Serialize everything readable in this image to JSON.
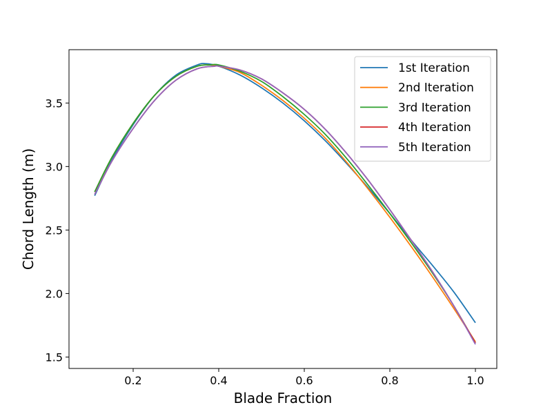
{
  "chart_data": {
    "type": "line",
    "title": "",
    "xlabel": "Blade Fraction",
    "ylabel": "Chord Length (m)",
    "xlim": [
      0.05,
      1.05
    ],
    "ylim": [
      1.41,
      3.92
    ],
    "xticks": [
      0.2,
      0.4,
      0.6,
      0.8,
      1.0
    ],
    "xtick_labels": [
      "0.2",
      "0.4",
      "0.6",
      "0.8",
      "1.0"
    ],
    "yticks": [
      1.5,
      2.0,
      2.5,
      3.0,
      3.5
    ],
    "ytick_labels": [
      "1.5",
      "2.0",
      "2.5",
      "3.0",
      "3.5"
    ],
    "grid": false,
    "legend_position": "top-right",
    "series": [
      {
        "name": "1st Iteration",
        "color": "#1f77b4",
        "x": [
          0.11,
          0.15,
          0.2,
          0.25,
          0.3,
          0.35,
          0.37,
          0.4,
          0.45,
          0.5,
          0.55,
          0.6,
          0.65,
          0.7,
          0.75,
          0.8,
          0.85,
          0.9,
          0.95,
          1.0
        ],
        "y": [
          2.77,
          3.05,
          3.33,
          3.56,
          3.72,
          3.8,
          3.81,
          3.79,
          3.72,
          3.62,
          3.5,
          3.36,
          3.2,
          3.02,
          2.83,
          2.63,
          2.42,
          2.22,
          2.01,
          1.77
        ]
      },
      {
        "name": "2nd Iteration",
        "color": "#ff7f0e",
        "x": [
          0.11,
          0.15,
          0.2,
          0.25,
          0.3,
          0.35,
          0.38,
          0.4,
          0.45,
          0.5,
          0.55,
          0.6,
          0.65,
          0.7,
          0.75,
          0.8,
          0.85,
          0.9,
          0.95,
          1.0
        ],
        "y": [
          2.8,
          3.07,
          3.34,
          3.56,
          3.71,
          3.79,
          3.8,
          3.79,
          3.74,
          3.64,
          3.52,
          3.38,
          3.22,
          3.03,
          2.82,
          2.6,
          2.37,
          2.13,
          1.88,
          1.62
        ]
      },
      {
        "name": "3rd Iteration",
        "color": "#2ca02c",
        "x": [
          0.11,
          0.15,
          0.2,
          0.25,
          0.3,
          0.35,
          0.38,
          0.4,
          0.45,
          0.5,
          0.55,
          0.6,
          0.65,
          0.7,
          0.75,
          0.8,
          0.85,
          0.9,
          0.95,
          1.0
        ],
        "y": [
          2.8,
          3.07,
          3.34,
          3.56,
          3.71,
          3.79,
          3.8,
          3.8,
          3.75,
          3.67,
          3.55,
          3.41,
          3.25,
          3.06,
          2.85,
          2.63,
          2.4,
          2.16,
          1.9,
          1.61
        ]
      },
      {
        "name": "4th Iteration",
        "color": "#d62728",
        "x": [
          0.11,
          0.15,
          0.2,
          0.25,
          0.3,
          0.35,
          0.39,
          0.4,
          0.45,
          0.5,
          0.55,
          0.6,
          0.65,
          0.7,
          0.75,
          0.8,
          0.85,
          0.9,
          0.95,
          1.0
        ],
        "y": [
          2.78,
          3.04,
          3.3,
          3.52,
          3.68,
          3.77,
          3.79,
          3.79,
          3.76,
          3.69,
          3.58,
          3.45,
          3.29,
          3.1,
          2.89,
          2.66,
          2.42,
          2.17,
          1.9,
          1.61
        ]
      },
      {
        "name": "5th Iteration",
        "color": "#9467bd",
        "x": [
          0.11,
          0.15,
          0.2,
          0.25,
          0.3,
          0.35,
          0.39,
          0.4,
          0.45,
          0.5,
          0.55,
          0.6,
          0.65,
          0.7,
          0.75,
          0.8,
          0.85,
          0.9,
          0.95,
          1.0
        ],
        "y": [
          2.78,
          3.04,
          3.3,
          3.52,
          3.68,
          3.77,
          3.79,
          3.79,
          3.76,
          3.69,
          3.58,
          3.45,
          3.29,
          3.1,
          2.89,
          2.66,
          2.42,
          2.17,
          1.9,
          1.6
        ]
      }
    ]
  }
}
